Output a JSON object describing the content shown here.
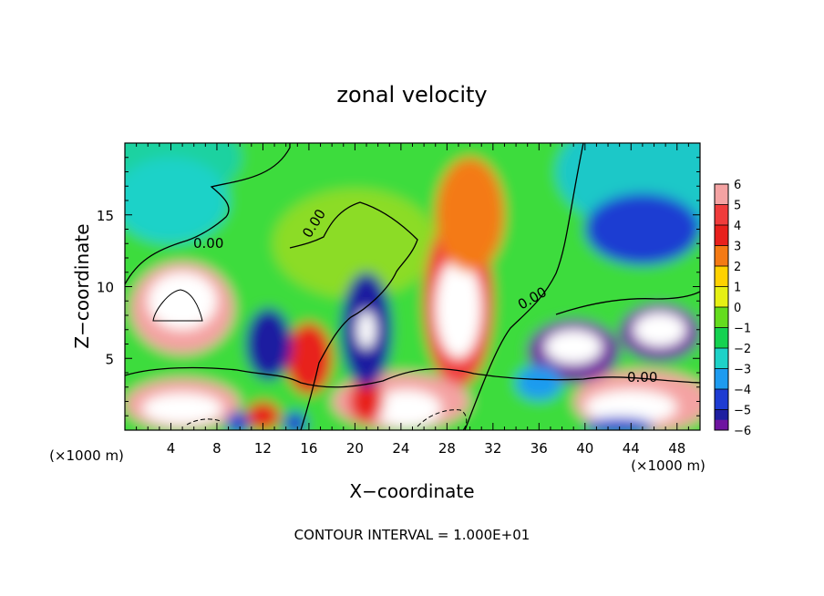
{
  "chart_data": {
    "type": "heatmap",
    "title": "zonal velocity",
    "xlabel": "X−coordinate",
    "ylabel": "Z−coordinate",
    "x_unit": "(×1000 m)",
    "y_unit": "(×1000 m)",
    "footer": "CONTOUR INTERVAL = 1.000E+01",
    "xlim": [
      0,
      50
    ],
    "ylim": [
      0,
      20
    ],
    "xticks": [
      4,
      8,
      12,
      16,
      20,
      24,
      28,
      32,
      36,
      40,
      44,
      48
    ],
    "xtick_labels": [
      "4",
      "8",
      "12",
      "16",
      "20",
      "24",
      "28",
      "32",
      "36",
      "40",
      "44",
      "48"
    ],
    "yticks": [
      5,
      10,
      15
    ],
    "ytick_labels": [
      "5",
      "10",
      "15"
    ],
    "colorbar": {
      "levels": [
        6,
        5,
        4,
        3,
        2,
        1,
        0,
        -1,
        -2,
        -3,
        -4,
        -5,
        -6
      ],
      "labels": [
        "6",
        "5",
        "4",
        "3",
        "2",
        "1",
        "0",
        "−1",
        "−2",
        "−3",
        "−4",
        "−5",
        "−6"
      ],
      "colors": [
        "#f4a3a3",
        "#f03c3c",
        "#e8201c",
        "#f47a14",
        "#ffd200",
        "#e6f014",
        "#64dc1e",
        "#14d250",
        "#1ed2c8",
        "#1e9bf0",
        "#1e3cd2",
        "#1e1ea0",
        "#6e14a0"
      ]
    },
    "contour_labels": [
      "0.00",
      "0.00",
      "0.00",
      "0.00"
    ],
    "features": [
      {
        "x": 5,
        "z": 8.5,
        "rx": 4.5,
        "rz": 3.2,
        "value": 6
      },
      {
        "x": 5,
        "z": 9,
        "rx": 3,
        "rz": 2,
        "value": 8
      },
      {
        "x": 29,
        "z": 9,
        "rx": 3,
        "rz": 6,
        "value": 5
      },
      {
        "x": 29,
        "z": 8.5,
        "rx": 2,
        "rz": 3.5,
        "value": 7
      },
      {
        "x": 30,
        "z": 15,
        "rx": 3,
        "rz": 4,
        "value": 3
      },
      {
        "x": 24,
        "z": 2,
        "rx": 6,
        "rz": 2,
        "value": 6
      },
      {
        "x": 24.5,
        "z": 1.5,
        "rx": 3,
        "rz": 1.3,
        "value": 8
      },
      {
        "x": 5,
        "z": 1.8,
        "rx": 5,
        "rz": 1.8,
        "value": 6
      },
      {
        "x": 5,
        "z": 1.5,
        "rx": 3.5,
        "rz": 1.1,
        "value": 8
      },
      {
        "x": 45,
        "z": 2,
        "rx": 6,
        "rz": 2.2,
        "value": 6
      },
      {
        "x": 44,
        "z": 1.6,
        "rx": 4,
        "rz": 1.2,
        "value": 8
      },
      {
        "x": 16,
        "z": 5,
        "rx": 2,
        "rz": 2.5,
        "value": 4
      },
      {
        "x": 21,
        "z": 2,
        "rx": 1.5,
        "rz": 1.5,
        "value": 4
      },
      {
        "x": 12,
        "z": 1,
        "rx": 1.5,
        "rz": 1,
        "value": 4
      },
      {
        "x": 21,
        "z": 7,
        "rx": 2.2,
        "rz": 4,
        "value": -5
      },
      {
        "x": 21,
        "z": 7,
        "rx": 0.8,
        "rz": 1.3,
        "value": -8
      },
      {
        "x": 12.5,
        "z": 6,
        "rx": 2,
        "rz": 2.5,
        "value": -5
      },
      {
        "x": 39,
        "z": 5.5,
        "rx": 4,
        "rz": 2.2,
        "value": -6
      },
      {
        "x": 39,
        "z": 5.8,
        "rx": 2.5,
        "rz": 1.2,
        "value": -8
      },
      {
        "x": 46.5,
        "z": 6.8,
        "rx": 3.5,
        "rz": 2,
        "value": -6
      },
      {
        "x": 46.5,
        "z": 7,
        "rx": 2.3,
        "rz": 1.2,
        "value": -8
      },
      {
        "x": 45,
        "z": 14,
        "rx": 5,
        "rz": 2.5,
        "value": -4
      },
      {
        "x": 4,
        "z": 16,
        "rx": 5,
        "rz": 3,
        "value": -2
      },
      {
        "x": 36,
        "z": 3.3,
        "rx": 2,
        "rz": 1.2,
        "value": -3
      },
      {
        "x": 9.8,
        "z": 0.5,
        "rx": 1,
        "rz": 0.8,
        "value": -4
      },
      {
        "x": 14.8,
        "z": 0.5,
        "rx": 1,
        "rz": 0.8,
        "value": -4
      },
      {
        "x": 43,
        "z": 0.3,
        "rx": 3,
        "rz": 0.6,
        "value": -4
      }
    ]
  }
}
